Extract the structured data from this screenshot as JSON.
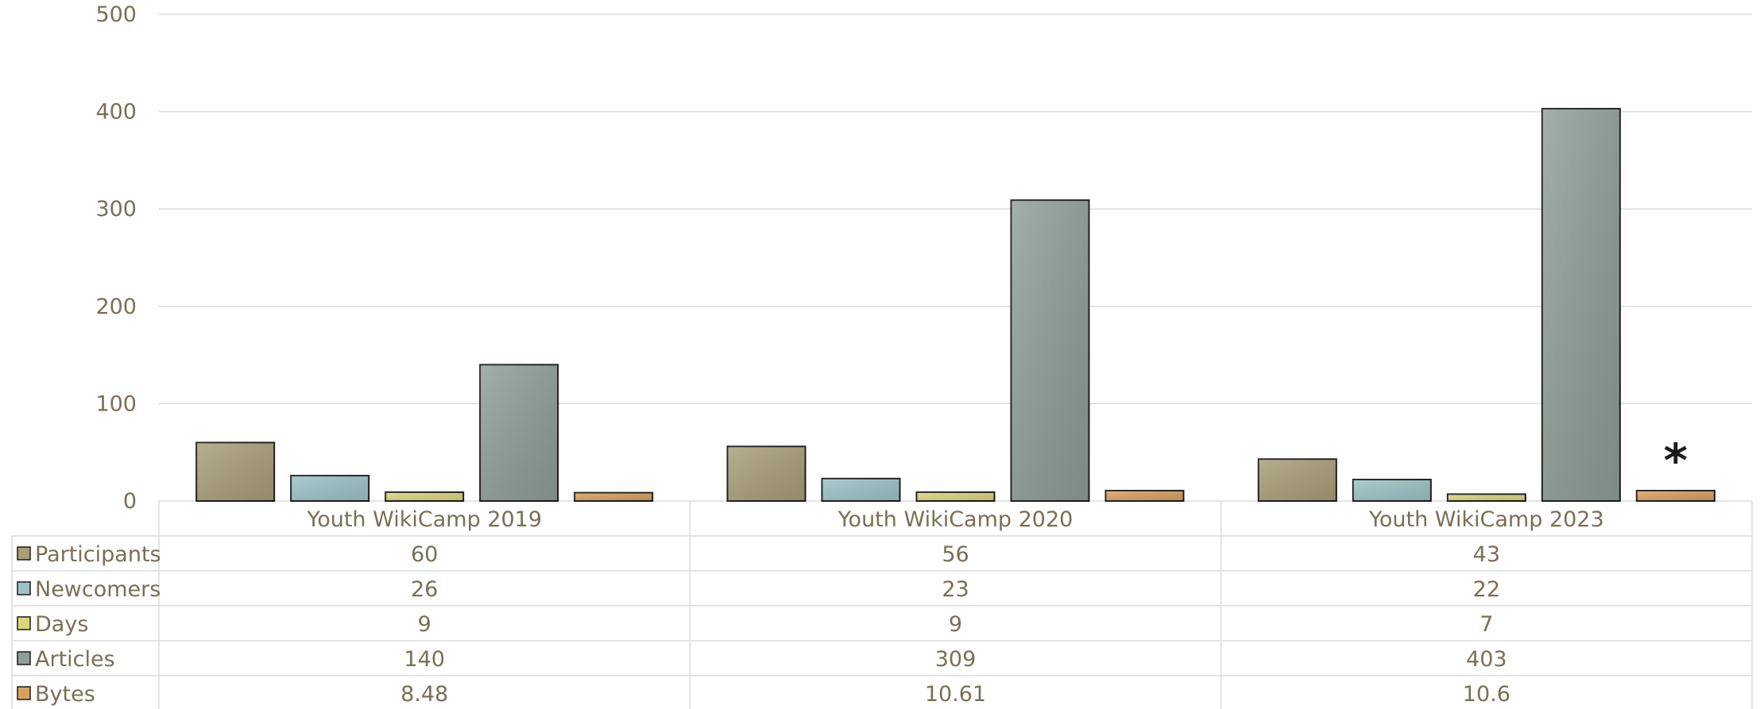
{
  "chart_data": {
    "type": "bar",
    "categories": [
      "Youth WikiCamp 2019",
      "Youth WikiCamp 2020",
      "Youth WikiCamp 2023"
    ],
    "series": [
      {
        "name": "Participants",
        "values": [
          60,
          56,
          43
        ],
        "color": "#a89f77"
      },
      {
        "name": "Newcomers",
        "values": [
          26,
          23,
          22
        ],
        "color": "#9cc4c6"
      },
      {
        "name": "Days",
        "values": [
          9,
          9,
          7
        ],
        "color": "#ddd57a"
      },
      {
        "name": "Articles",
        "values": [
          140,
          309,
          403
        ],
        "color": "#8f9e96"
      },
      {
        "name": "Bytes",
        "values": [
          8.48,
          10.61,
          10.6
        ],
        "color": "#d9a15e"
      }
    ],
    "table_values": [
      [
        "60",
        "56",
        "43"
      ],
      [
        "26",
        "23",
        "22"
      ],
      [
        "9",
        "9",
        "7"
      ],
      [
        "140",
        "309",
        "403"
      ],
      [
        "8.48",
        "10.61",
        "10.6"
      ]
    ],
    "yticks": [
      "0",
      "100",
      "200",
      "300",
      "400",
      "500"
    ],
    "ylim": [
      0,
      500
    ],
    "grid": true,
    "legend": "data-table",
    "annotation": "*"
  }
}
